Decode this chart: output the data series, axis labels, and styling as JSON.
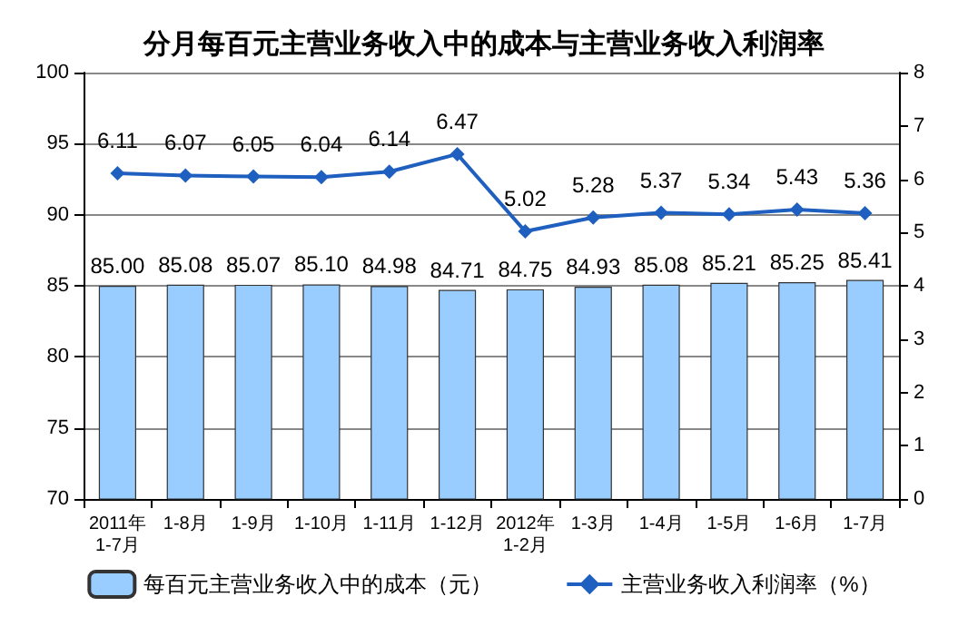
{
  "chart_data": {
    "type": "bar",
    "title": "分月每百元主营业务收入中的成本与主营业务收入利润率",
    "categories": [
      "2011年\n1-7月",
      "1-8月",
      "1-9月",
      "1-10月",
      "1-11月",
      "1-12月",
      "2012年\n1-2月",
      "1-3月",
      "1-4月",
      "1-5月",
      "1-6月",
      "1-7月"
    ],
    "series": [
      {
        "name": "每百元主营业务收入中的成本（元）",
        "color": "#99ccff",
        "values": [
          85.0,
          85.08,
          85.07,
          85.1,
          84.98,
          84.71,
          84.75,
          84.93,
          85.08,
          85.21,
          85.25,
          85.41
        ],
        "value_labels": [
          "85.00",
          "85.08",
          "85.07",
          "85.10",
          "84.98",
          "84.71",
          "84.75",
          "84.93",
          "85.08",
          "85.21",
          "85.25",
          "85.41"
        ]
      },
      {
        "name": "主营业务收入利润率（%）",
        "type": "line",
        "axis": "y2",
        "color": "#1f5fbf",
        "marker": "diamond",
        "values": [
          6.11,
          6.07,
          6.05,
          6.04,
          6.14,
          6.47,
          5.02,
          5.28,
          5.37,
          5.34,
          5.43,
          5.36
        ],
        "value_labels": [
          "6.11",
          "6.07",
          "6.05",
          "6.04",
          "6.14",
          "6.47",
          "5.02",
          "5.28",
          "5.37",
          "5.34",
          "5.43",
          "5.36"
        ]
      }
    ],
    "ylim": [
      70,
      100
    ],
    "yticks": [
      70,
      75,
      80,
      85,
      90,
      95,
      100
    ],
    "y2lim": [
      0,
      8
    ],
    "y2ticks": [
      0,
      1,
      2,
      3,
      4,
      5,
      6,
      7,
      8
    ],
    "grid": "y",
    "legend": "bottom"
  }
}
